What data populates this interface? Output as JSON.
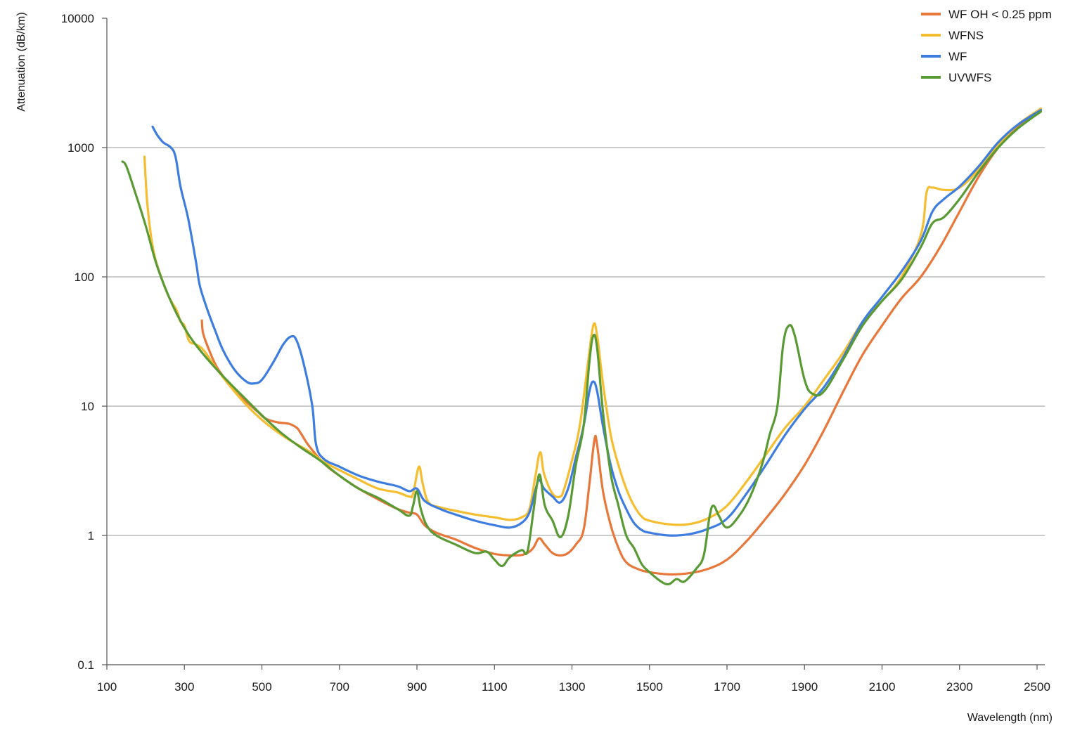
{
  "chart_data": {
    "type": "line",
    "title": "",
    "xlabel": "Wavelength (nm)",
    "ylabel": "Attenuation (dB/km)",
    "xlim": [
      100,
      2520
    ],
    "ylim": [
      0.1,
      10000
    ],
    "yscale": "log",
    "grid": "horizontal",
    "legend_position": "top-right",
    "xticks": [
      100,
      300,
      500,
      700,
      900,
      1100,
      1300,
      1500,
      1700,
      1900,
      2100,
      2300,
      2500
    ],
    "xtick_labels": [
      "100",
      "300",
      "500",
      "700",
      "900",
      "1100",
      "1300",
      "1500",
      "1700",
      "1900",
      "2100",
      "2300",
      "2500"
    ],
    "yticks": [
      0.1,
      1,
      10,
      100,
      1000,
      10000
    ],
    "ytick_labels": [
      "0.1",
      "1",
      "10",
      "100",
      "1000",
      "10000"
    ],
    "series": [
      {
        "name": "WF OH < 0.25 ppm",
        "color": "#e8773a",
        "points": [
          [
            345,
            46
          ],
          [
            348,
            37
          ],
          [
            360,
            29
          ],
          [
            380,
            21
          ],
          [
            400,
            17
          ],
          [
            430,
            13
          ],
          [
            460,
            10.8
          ],
          [
            490,
            9
          ],
          [
            510,
            8
          ],
          [
            540,
            7.5
          ],
          [
            570,
            7.3
          ],
          [
            590,
            6.8
          ],
          [
            600,
            6.2
          ],
          [
            620,
            5
          ],
          [
            660,
            3.6
          ],
          [
            700,
            2.9
          ],
          [
            750,
            2.3
          ],
          [
            800,
            1.9
          ],
          [
            850,
            1.6
          ],
          [
            880,
            1.5
          ],
          [
            900,
            1.45
          ],
          [
            920,
            1.2
          ],
          [
            950,
            1.05
          ],
          [
            1000,
            0.93
          ],
          [
            1050,
            0.8
          ],
          [
            1100,
            0.72
          ],
          [
            1150,
            0.7
          ],
          [
            1180,
            0.72
          ],
          [
            1200,
            0.8
          ],
          [
            1215,
            0.95
          ],
          [
            1230,
            0.85
          ],
          [
            1250,
            0.73
          ],
          [
            1270,
            0.7
          ],
          [
            1290,
            0.73
          ],
          [
            1310,
            0.85
          ],
          [
            1330,
            1.1
          ],
          [
            1345,
            2.5
          ],
          [
            1358,
            5.5
          ],
          [
            1365,
            5
          ],
          [
            1380,
            2.2
          ],
          [
            1400,
            1.2
          ],
          [
            1420,
            0.8
          ],
          [
            1440,
            0.62
          ],
          [
            1470,
            0.55
          ],
          [
            1500,
            0.52
          ],
          [
            1550,
            0.5
          ],
          [
            1600,
            0.51
          ],
          [
            1650,
            0.55
          ],
          [
            1700,
            0.65
          ],
          [
            1750,
            0.9
          ],
          [
            1800,
            1.35
          ],
          [
            1850,
            2.1
          ],
          [
            1900,
            3.5
          ],
          [
            1950,
            6.5
          ],
          [
            2000,
            13
          ],
          [
            2050,
            25
          ],
          [
            2100,
            42
          ],
          [
            2150,
            68
          ],
          [
            2200,
            100
          ],
          [
            2250,
            170
          ],
          [
            2300,
            320
          ],
          [
            2350,
            600
          ],
          [
            2400,
            1000
          ],
          [
            2450,
            1450
          ],
          [
            2510,
            1950
          ]
        ]
      },
      {
        "name": "WFNS",
        "color": "#f5bd30",
        "points": [
          [
            197,
            850
          ],
          [
            205,
            350
          ],
          [
            220,
            160
          ],
          [
            240,
            100
          ],
          [
            260,
            70
          ],
          [
            280,
            55
          ],
          [
            290,
            45
          ],
          [
            300,
            42
          ],
          [
            312,
            32
          ],
          [
            330,
            30
          ],
          [
            350,
            27
          ],
          [
            380,
            20
          ],
          [
            420,
            14
          ],
          [
            470,
            9.5
          ],
          [
            520,
            7
          ],
          [
            570,
            5.5
          ],
          [
            620,
            4.5
          ],
          [
            660,
            3.7
          ],
          [
            700,
            3.2
          ],
          [
            750,
            2.7
          ],
          [
            800,
            2.3
          ],
          [
            850,
            2.15
          ],
          [
            880,
            2.0
          ],
          [
            890,
            2.1
          ],
          [
            905,
            3.4
          ],
          [
            915,
            2.5
          ],
          [
            930,
            1.8
          ],
          [
            960,
            1.65
          ],
          [
            1000,
            1.55
          ],
          [
            1050,
            1.45
          ],
          [
            1100,
            1.38
          ],
          [
            1140,
            1.32
          ],
          [
            1170,
            1.38
          ],
          [
            1190,
            1.6
          ],
          [
            1205,
            2.8
          ],
          [
            1218,
            4.4
          ],
          [
            1228,
            3
          ],
          [
            1250,
            2.1
          ],
          [
            1270,
            2.0
          ],
          [
            1280,
            2.3
          ],
          [
            1300,
            3.8
          ],
          [
            1320,
            7
          ],
          [
            1340,
            20
          ],
          [
            1355,
            42
          ],
          [
            1365,
            35
          ],
          [
            1380,
            15
          ],
          [
            1400,
            6
          ],
          [
            1420,
            3.5
          ],
          [
            1440,
            2.3
          ],
          [
            1460,
            1.7
          ],
          [
            1480,
            1.4
          ],
          [
            1500,
            1.3
          ],
          [
            1550,
            1.22
          ],
          [
            1600,
            1.22
          ],
          [
            1650,
            1.35
          ],
          [
            1700,
            1.7
          ],
          [
            1750,
            2.6
          ],
          [
            1800,
            4.2
          ],
          [
            1850,
            6.8
          ],
          [
            1900,
            10
          ],
          [
            1950,
            16
          ],
          [
            2000,
            26
          ],
          [
            2050,
            45
          ],
          [
            2100,
            65
          ],
          [
            2150,
            100
          ],
          [
            2200,
            210
          ],
          [
            2215,
            450
          ],
          [
            2230,
            490
          ],
          [
            2260,
            470
          ],
          [
            2300,
            490
          ],
          [
            2350,
            680
          ],
          [
            2400,
            1050
          ],
          [
            2450,
            1500
          ],
          [
            2510,
            2000
          ]
        ]
      },
      {
        "name": "WF",
        "color": "#3e7de0",
        "points": [
          [
            218,
            1450
          ],
          [
            230,
            1250
          ],
          [
            245,
            1100
          ],
          [
            265,
            1000
          ],
          [
            277,
            850
          ],
          [
            290,
            500
          ],
          [
            310,
            280
          ],
          [
            330,
            130
          ],
          [
            340,
            85
          ],
          [
            360,
            55
          ],
          [
            380,
            38
          ],
          [
            400,
            27
          ],
          [
            430,
            19
          ],
          [
            460,
            15.5
          ],
          [
            480,
            15
          ],
          [
            500,
            16
          ],
          [
            530,
            22
          ],
          [
            555,
            30
          ],
          [
            575,
            34.5
          ],
          [
            590,
            32
          ],
          [
            610,
            20
          ],
          [
            630,
            10
          ],
          [
            640,
            5
          ],
          [
            660,
            3.9
          ],
          [
            700,
            3.4
          ],
          [
            750,
            2.9
          ],
          [
            800,
            2.6
          ],
          [
            850,
            2.4
          ],
          [
            880,
            2.2
          ],
          [
            900,
            2.3
          ],
          [
            920,
            1.85
          ],
          [
            960,
            1.6
          ],
          [
            1000,
            1.45
          ],
          [
            1050,
            1.3
          ],
          [
            1100,
            1.2
          ],
          [
            1140,
            1.15
          ],
          [
            1170,
            1.25
          ],
          [
            1190,
            1.5
          ],
          [
            1205,
            2.2
          ],
          [
            1215,
            2.7
          ],
          [
            1228,
            2.3
          ],
          [
            1250,
            2.0
          ],
          [
            1270,
            1.8
          ],
          [
            1290,
            2.3
          ],
          [
            1310,
            4
          ],
          [
            1330,
            7
          ],
          [
            1345,
            13
          ],
          [
            1355,
            15.5
          ],
          [
            1365,
            13
          ],
          [
            1380,
            7
          ],
          [
            1400,
            3.5
          ],
          [
            1420,
            2.2
          ],
          [
            1440,
            1.6
          ],
          [
            1460,
            1.25
          ],
          [
            1480,
            1.1
          ],
          [
            1500,
            1.05
          ],
          [
            1550,
            1.0
          ],
          [
            1600,
            1.02
          ],
          [
            1650,
            1.12
          ],
          [
            1700,
            1.35
          ],
          [
            1750,
            2.1
          ],
          [
            1800,
            3.5
          ],
          [
            1850,
            6
          ],
          [
            1900,
            9.5
          ],
          [
            1950,
            14
          ],
          [
            2000,
            24
          ],
          [
            2050,
            45
          ],
          [
            2100,
            70
          ],
          [
            2150,
            110
          ],
          [
            2200,
            190
          ],
          [
            2230,
            320
          ],
          [
            2260,
            400
          ],
          [
            2300,
            500
          ],
          [
            2350,
            720
          ],
          [
            2400,
            1100
          ],
          [
            2450,
            1500
          ],
          [
            2510,
            1950
          ]
        ]
      },
      {
        "name": "UVWFS",
        "color": "#5a9a35",
        "points": [
          [
            140,
            780
          ],
          [
            150,
            720
          ],
          [
            170,
            480
          ],
          [
            200,
            250
          ],
          [
            230,
            120
          ],
          [
            270,
            60
          ],
          [
            310,
            36
          ],
          [
            350,
            25
          ],
          [
            400,
            17
          ],
          [
            450,
            12
          ],
          [
            500,
            8.5
          ],
          [
            550,
            6.2
          ],
          [
            600,
            4.8
          ],
          [
            650,
            3.8
          ],
          [
            700,
            2.9
          ],
          [
            750,
            2.3
          ],
          [
            800,
            1.95
          ],
          [
            850,
            1.6
          ],
          [
            880,
            1.42
          ],
          [
            890,
            1.7
          ],
          [
            900,
            2.2
          ],
          [
            910,
            1.6
          ],
          [
            925,
            1.2
          ],
          [
            950,
            1.0
          ],
          [
            1000,
            0.85
          ],
          [
            1050,
            0.73
          ],
          [
            1080,
            0.75
          ],
          [
            1100,
            0.65
          ],
          [
            1120,
            0.58
          ],
          [
            1140,
            0.68
          ],
          [
            1170,
            0.77
          ],
          [
            1185,
            0.75
          ],
          [
            1200,
            1.5
          ],
          [
            1210,
            2.5
          ],
          [
            1218,
            2.9
          ],
          [
            1230,
            1.7
          ],
          [
            1250,
            1.3
          ],
          [
            1270,
            0.97
          ],
          [
            1290,
            1.4
          ],
          [
            1310,
            3.5
          ],
          [
            1330,
            7
          ],
          [
            1345,
            22
          ],
          [
            1355,
            35
          ],
          [
            1365,
            28
          ],
          [
            1380,
            9
          ],
          [
            1400,
            3
          ],
          [
            1420,
            1.7
          ],
          [
            1440,
            1.0
          ],
          [
            1460,
            0.8
          ],
          [
            1480,
            0.6
          ],
          [
            1500,
            0.52
          ],
          [
            1530,
            0.44
          ],
          [
            1550,
            0.42
          ],
          [
            1570,
            0.46
          ],
          [
            1590,
            0.44
          ],
          [
            1620,
            0.55
          ],
          [
            1640,
            0.7
          ],
          [
            1655,
            1.4
          ],
          [
            1665,
            1.7
          ],
          [
            1680,
            1.4
          ],
          [
            1700,
            1.15
          ],
          [
            1730,
            1.4
          ],
          [
            1760,
            2.0
          ],
          [
            1790,
            3.5
          ],
          [
            1810,
            6
          ],
          [
            1830,
            10
          ],
          [
            1845,
            30
          ],
          [
            1860,
            42
          ],
          [
            1875,
            35
          ],
          [
            1900,
            16
          ],
          [
            1920,
            12.5
          ],
          [
            1950,
            13
          ],
          [
            2000,
            23
          ],
          [
            2050,
            42
          ],
          [
            2100,
            65
          ],
          [
            2150,
            95
          ],
          [
            2200,
            170
          ],
          [
            2230,
            260
          ],
          [
            2260,
            290
          ],
          [
            2300,
            400
          ],
          [
            2350,
            650
          ],
          [
            2400,
            1000
          ],
          [
            2450,
            1400
          ],
          [
            2510,
            1900
          ]
        ]
      }
    ]
  }
}
